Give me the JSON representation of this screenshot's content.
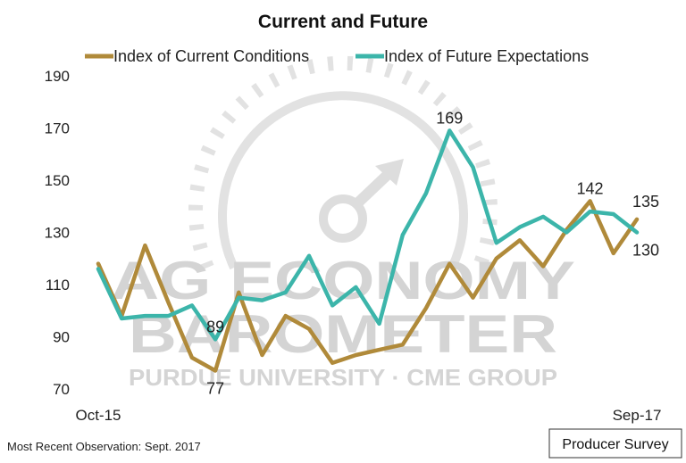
{
  "chart_data": {
    "type": "line",
    "title": "Current and Future",
    "x_start_label": "Oct-15",
    "x_end_label": "Sep-17",
    "ylim": [
      70,
      190
    ],
    "yticks": [
      70,
      90,
      110,
      130,
      150,
      170,
      190
    ],
    "grid": false,
    "legend_position": "top",
    "series": [
      {
        "name": "Index of Current Conditions",
        "color": "#B08A3A",
        "values": [
          118,
          98,
          125,
          103,
          82,
          77,
          107,
          83,
          98,
          93,
          80,
          83,
          85,
          87,
          101,
          118,
          105,
          120,
          127,
          117,
          131,
          142,
          122,
          135
        ]
      },
      {
        "name": "Index of Future Expectations",
        "color": "#3CB5AA",
        "values": [
          116,
          97,
          98,
          98,
          102,
          89,
          105,
          104,
          107,
          121,
          102,
          109,
          95,
          129,
          145,
          169,
          155,
          126,
          132,
          136,
          130,
          138,
          137,
          130
        ]
      }
    ],
    "annotations": [
      {
        "series": 0,
        "index": 5,
        "text": "77",
        "pos": "below"
      },
      {
        "series": 1,
        "index": 5,
        "text": "89",
        "pos": "above"
      },
      {
        "series": 1,
        "index": 15,
        "text": "169",
        "pos": "above"
      },
      {
        "series": 0,
        "index": 21,
        "text": "142",
        "pos": "above"
      },
      {
        "series": 0,
        "index": 23,
        "text": "135",
        "pos": "above-right"
      },
      {
        "series": 1,
        "index": 23,
        "text": "130",
        "pos": "below-right"
      }
    ]
  },
  "watermark": {
    "line1": "AG ECONOMY",
    "line2": "BAROMETER",
    "line3": "PURDUE UNIVERSITY · CME GROUP"
  },
  "footer": {
    "note": "Most Recent Observation: Sept. 2017",
    "badge": "Producer Survey"
  }
}
